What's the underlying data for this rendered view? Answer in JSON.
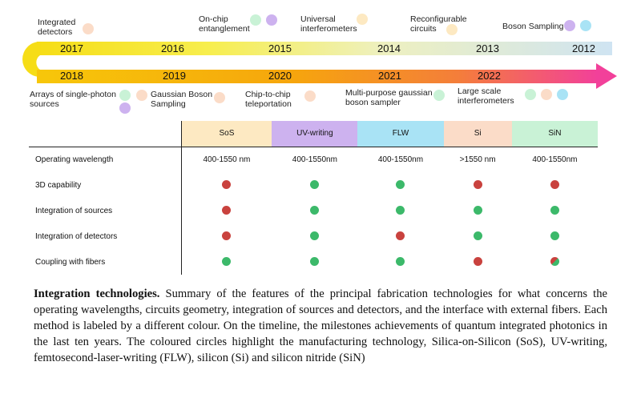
{
  "colors": {
    "sos": "#fde9c2",
    "uv_writing": "#cdb2ef",
    "flw": "#a9e3f5",
    "si": "#fbdcc8",
    "sin": "#c9f2d6",
    "dot_green": "#3cb96a",
    "dot_red": "#c9423e"
  },
  "timeline": {
    "top_years": [
      "2017",
      "2016",
      "2015",
      "2014",
      "2013",
      "2012"
    ],
    "bottom_years": [
      "2018",
      "2019",
      "2020",
      "2021",
      "2022"
    ],
    "top_milestones": [
      {
        "id": "integrated-detectors",
        "lines": [
          "Integrated",
          "detectors"
        ],
        "techs": [
          "si"
        ]
      },
      {
        "id": "on-chip-entanglement",
        "lines": [
          "On-chip",
          "entanglement"
        ],
        "techs": [
          "sin",
          "uv_writing"
        ]
      },
      {
        "id": "universal-interferometers",
        "lines": [
          "Universal",
          "interferometers"
        ],
        "techs": [
          "sos"
        ]
      },
      {
        "id": "reconfigurable-circuits",
        "lines": [
          "Reconfigurable",
          "circuits"
        ],
        "techs": [
          "sos"
        ]
      },
      {
        "id": "boson-sampling",
        "lines": [
          "Boson Sampling"
        ],
        "techs": [
          "uv_writing",
          "flw"
        ]
      }
    ],
    "bottom_milestones": [
      {
        "id": "arrays-single-photon-sources",
        "lines": [
          "Arrays of single-photon",
          "sources"
        ],
        "techs": [
          "sin",
          "si",
          "uv_writing"
        ]
      },
      {
        "id": "gaussian-boson-sampling",
        "lines": [
          "Gaussian Boson",
          "Sampling"
        ],
        "techs": [
          "si"
        ]
      },
      {
        "id": "chip-to-chip-teleportation",
        "lines": [
          "Chip-to-chip",
          "teleportation"
        ],
        "techs": [
          "si"
        ]
      },
      {
        "id": "multi-purpose-gaussian-boson-sampler",
        "lines": [
          "Multi-purpose gaussian",
          "boson sampler"
        ],
        "techs": [
          "sin"
        ]
      },
      {
        "id": "large-scale-interferometers",
        "lines": [
          "Large scale",
          "interferometers"
        ],
        "techs": [
          "sin",
          "si",
          "flw"
        ]
      }
    ]
  },
  "table": {
    "headers": [
      {
        "label": "SoS",
        "tech": "sos"
      },
      {
        "label": "UV-writing",
        "tech": "uv_writing"
      },
      {
        "label": "FLW",
        "tech": "flw"
      },
      {
        "label": "Si",
        "tech": "si"
      },
      {
        "label": "SiN",
        "tech": "sin"
      }
    ],
    "rows": [
      {
        "feature": "Operating wavelength",
        "text": [
          "400-1550 nm",
          "400-1550nm",
          "400-1550nm",
          ">1550 nm",
          "400-1550nm"
        ]
      },
      {
        "feature": "3D capability",
        "marks": [
          "red",
          "green",
          "green",
          "red",
          "red"
        ]
      },
      {
        "feature": "Integration of sources",
        "marks": [
          "red",
          "green",
          "green",
          "green",
          "green"
        ]
      },
      {
        "feature": "Integration of detectors",
        "marks": [
          "red",
          "green",
          "red",
          "green",
          "green"
        ]
      },
      {
        "feature": "Coupling with fibers",
        "marks": [
          "green",
          "green",
          "green",
          "red",
          "mixed"
        ]
      }
    ]
  },
  "caption": {
    "title": "Integration technologies.",
    "body": " Summary of the features of the principal fabrication technologies for what concerns the operating wavelengths, circuits geometry, integration of sources and detectors, and the interface with external fibers. Each method is labeled by a different colour. On the timeline, the milestones achievements of quantum integrated photonics in the last ten years. The coloured circles highlight the manufacturing technology, Silica-on-Silicon (SoS), UV-writing, femtosecond-laser-writing (FLW), silicon (Si) and silicon nitride (SiN)"
  }
}
